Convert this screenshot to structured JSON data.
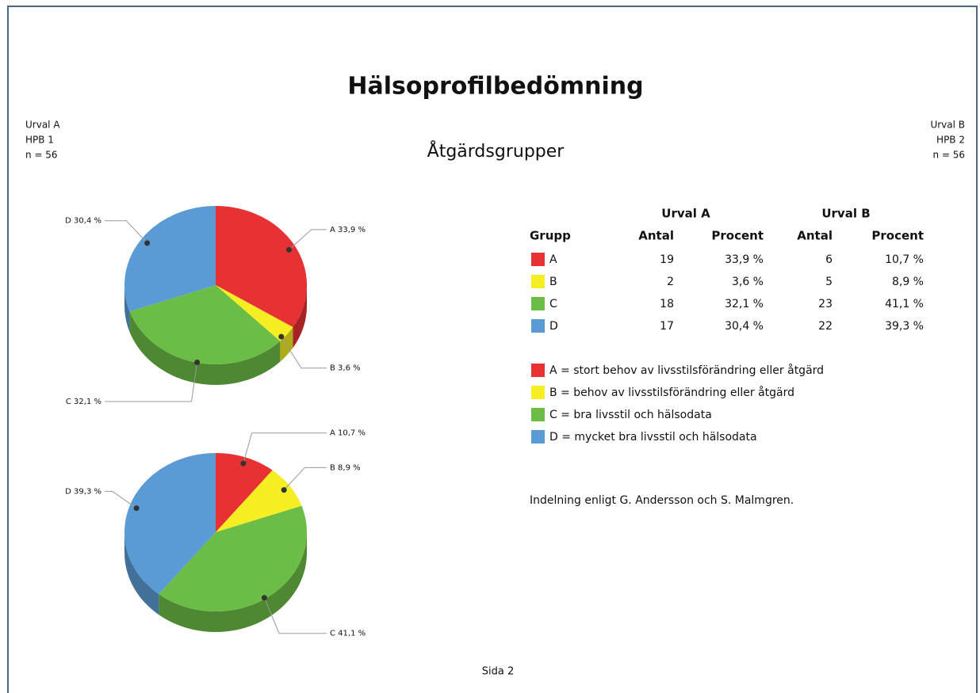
{
  "title": "Hälsoprofilbedömning",
  "subtitle": "Åtgärdsgrupper",
  "left_info": [
    "Urval A",
    "HPB 1",
    "n = 56"
  ],
  "right_info": [
    "Urval B",
    "HPB 2",
    "n = 56"
  ],
  "chart_data": [
    {
      "type": "pie",
      "categories": [
        "A",
        "B",
        "C",
        "D"
      ],
      "values": [
        33.9,
        3.6,
        32.1,
        30.4
      ],
      "value_labels": [
        "A 33,9 %",
        "B 3,6 %",
        "C 32,1 %",
        "D 30,4 %"
      ],
      "colors": [
        "#e83132",
        "#f4ee22",
        "#6cbd45",
        "#5b9bd5"
      ]
    },
    {
      "type": "pie",
      "categories": [
        "A",
        "B",
        "C",
        "D"
      ],
      "values": [
        10.7,
        8.9,
        41.1,
        39.3
      ],
      "value_labels": [
        "A 10,7 %",
        "B 8,9 %",
        "C 41,1 %",
        "D 39,3 %"
      ],
      "colors": [
        "#e83132",
        "#f4ee22",
        "#6cbd45",
        "#5b9bd5"
      ]
    }
  ],
  "table": {
    "group_headers": [
      "Urval A",
      "Urval B"
    ],
    "columns": [
      "Grupp",
      "Antal",
      "Procent",
      "Antal",
      "Procent"
    ],
    "rows": [
      [
        "A",
        "19",
        "33,9 %",
        "6",
        "10,7 %"
      ],
      [
        "B",
        "2",
        "3,6 %",
        "5",
        "8,9 %"
      ],
      [
        "C",
        "18",
        "32,1 %",
        "23",
        "41,1 %"
      ],
      [
        "D",
        "17",
        "30,4 %",
        "22",
        "39,3 %"
      ]
    ]
  },
  "legend": [
    "A = stort behov av livsstilsförändring eller åtgärd",
    "B = behov av livsstilsförändring eller åtgärd",
    "C = bra livsstil och hälsodata",
    "D = mycket bra livsstil och hälsodata"
  ],
  "note": "Indelning enligt G. Andersson och S. Malmgren.",
  "footer": "Sida 2"
}
